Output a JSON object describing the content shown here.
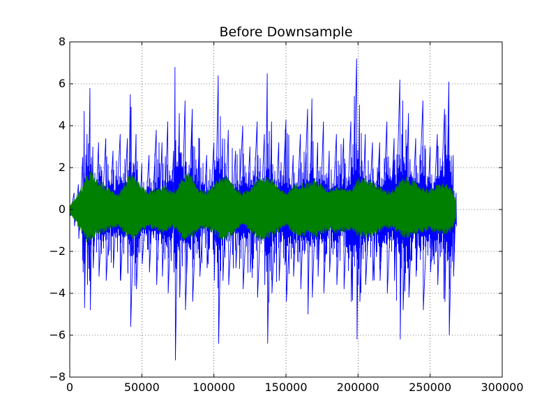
{
  "chart_data": {
    "type": "line",
    "title": "Before Downsample",
    "xlabel": "",
    "ylabel": "",
    "xlim": [
      0,
      300000
    ],
    "ylim": [
      -8,
      8
    ],
    "grid": true,
    "x_ticks": [
      {
        "value": 0,
        "label": "0"
      },
      {
        "value": 50000,
        "label": "50000"
      },
      {
        "value": 100000,
        "label": "100000"
      },
      {
        "value": 150000,
        "label": "150000"
      },
      {
        "value": 200000,
        "label": "200000"
      },
      {
        "value": 250000,
        "label": "250000"
      },
      {
        "value": 300000,
        "label": "300000"
      }
    ],
    "y_ticks": [
      {
        "value": -8,
        "label": "−8"
      },
      {
        "value": -6,
        "label": "−6"
      },
      {
        "value": -4,
        "label": "−4"
      },
      {
        "value": -2,
        "label": "−2"
      },
      {
        "value": 0,
        "label": "0"
      },
      {
        "value": 2,
        "label": "2"
      },
      {
        "value": 4,
        "label": "4"
      },
      {
        "value": 6,
        "label": "6"
      },
      {
        "value": 8,
        "label": "8"
      }
    ],
    "series": [
      {
        "color": "#0000ff",
        "x_start": 0,
        "x_end": 268000,
        "envelope_x": [
          0,
          3000,
          6000,
          9000,
          10000,
          12000,
          14000,
          16000,
          20000,
          25000,
          30000,
          35000,
          40000,
          42000,
          46000,
          50000,
          55000,
          60000,
          64000,
          68000,
          72000,
          73000,
          76000,
          80000,
          85000,
          90000,
          95000,
          100000,
          103000,
          106000,
          110000,
          115000,
          120000,
          125000,
          130000,
          135000,
          137000,
          140000,
          145000,
          150000,
          155000,
          160000,
          165000,
          168000,
          172000,
          176000,
          180000,
          185000,
          190000,
          195000,
          199000,
          201000,
          205000,
          210000,
          215000,
          220000,
          225000,
          229000,
          231000,
          235000,
          240000,
          245000,
          250000,
          255000,
          260000,
          263000,
          266000,
          268000
        ],
        "envelope_upper": [
          0.3,
          0.8,
          1.2,
          2.5,
          4.7,
          3.6,
          5.8,
          3.0,
          3.2,
          3.4,
          2.8,
          3.6,
          3.4,
          5.5,
          3.6,
          2.2,
          2.6,
          3.8,
          3.2,
          4.2,
          2.8,
          6.8,
          4.6,
          5.2,
          4.8,
          3.4,
          2.6,
          3.2,
          6.4,
          3.4,
          3.8,
          2.8,
          4.0,
          3.0,
          4.2,
          3.6,
          6.5,
          4.2,
          3.2,
          4.3,
          2.6,
          3.6,
          4.8,
          5.3,
          3.2,
          4.2,
          2.8,
          3.6,
          3.4,
          4.2,
          7.2,
          5.0,
          3.6,
          3.2,
          3.2,
          4.2,
          3.4,
          6.2,
          5.2,
          4.6,
          3.4,
          5.2,
          3.0,
          3.6,
          4.8,
          6.1,
          2.6,
          0.8
        ],
        "envelope_lower": [
          -0.3,
          -0.8,
          -1.4,
          -3.0,
          -4.7,
          -3.6,
          -4.8,
          -2.8,
          -3.2,
          -3.4,
          -2.8,
          -3.4,
          -3.0,
          -5.6,
          -3.8,
          -2.6,
          -3.0,
          -3.6,
          -3.2,
          -4.0,
          -3.0,
          -7.2,
          -4.2,
          -4.8,
          -4.4,
          -3.2,
          -2.8,
          -3.4,
          -6.4,
          -3.4,
          -3.6,
          -2.8,
          -3.8,
          -3.0,
          -4.2,
          -3.6,
          -6.4,
          -4.0,
          -3.4,
          -4.4,
          -3.2,
          -3.8,
          -5.0,
          -4.2,
          -3.2,
          -4.0,
          -3.0,
          -3.6,
          -3.8,
          -4.4,
          -6.2,
          -4.4,
          -3.6,
          -3.4,
          -3.4,
          -4.0,
          -3.4,
          -6.2,
          -4.8,
          -4.2,
          -3.2,
          -4.8,
          -3.0,
          -3.6,
          -4.4,
          -6.0,
          -3.2,
          -0.8
        ]
      },
      {
        "color": "#008000",
        "x_start": 0,
        "x_end": 268000,
        "envelope_x": [
          0,
          3000,
          6000,
          9000,
          12000,
          15000,
          18000,
          22000,
          26000,
          30000,
          34000,
          38000,
          42000,
          46000,
          50000,
          55000,
          60000,
          65000,
          70000,
          74000,
          78000,
          82000,
          86000,
          90000,
          95000,
          100000,
          104000,
          108000,
          112000,
          116000,
          120000,
          125000,
          130000,
          134000,
          138000,
          142000,
          146000,
          150000,
          155000,
          160000,
          165000,
          170000,
          175000,
          180000,
          185000,
          190000,
          195000,
          200000,
          205000,
          210000,
          215000,
          220000,
          225000,
          230000,
          235000,
          240000,
          245000,
          250000,
          255000,
          260000,
          264000,
          266000,
          268000
        ],
        "envelope_upper": [
          0.2,
          0.5,
          0.8,
          1.2,
          1.7,
          1.9,
          1.5,
          1.3,
          1.1,
          0.9,
          0.8,
          1.3,
          1.7,
          1.5,
          1.1,
          0.9,
          1.0,
          1.2,
          0.9,
          1.0,
          1.6,
          1.8,
          1.5,
          1.0,
          0.9,
          1.2,
          1.6,
          1.7,
          1.4,
          1.0,
          0.8,
          1.1,
          1.5,
          1.7,
          1.6,
          1.4,
          1.0,
          0.8,
          1.2,
          1.3,
          1.3,
          1.5,
          1.2,
          1.0,
          1.2,
          1.1,
          1.0,
          1.5,
          1.6,
          1.4,
          1.1,
          0.9,
          1.0,
          1.5,
          1.6,
          1.3,
          1.1,
          1.0,
          1.2,
          1.3,
          1.1,
          0.9,
          0.4
        ],
        "envelope_lower": [
          -0.2,
          -0.5,
          -0.9,
          -1.3,
          -1.6,
          -1.5,
          -1.3,
          -1.2,
          -1.0,
          -0.9,
          -0.8,
          -1.2,
          -1.5,
          -1.4,
          -1.1,
          -0.9,
          -1.0,
          -1.2,
          -0.9,
          -1.0,
          -1.5,
          -1.5,
          -1.3,
          -1.0,
          -0.9,
          -1.2,
          -1.4,
          -1.5,
          -1.3,
          -1.0,
          -0.8,
          -1.1,
          -1.4,
          -1.5,
          -1.4,
          -1.3,
          -1.0,
          -0.8,
          -1.2,
          -1.3,
          -1.3,
          -1.4,
          -1.2,
          -1.0,
          -1.2,
          -1.1,
          -1.0,
          -1.3,
          -1.4,
          -1.3,
          -1.1,
          -0.9,
          -1.0,
          -1.3,
          -1.4,
          -1.2,
          -1.1,
          -1.0,
          -1.2,
          -1.2,
          -1.1,
          -0.9,
          -0.4
        ]
      }
    ]
  }
}
